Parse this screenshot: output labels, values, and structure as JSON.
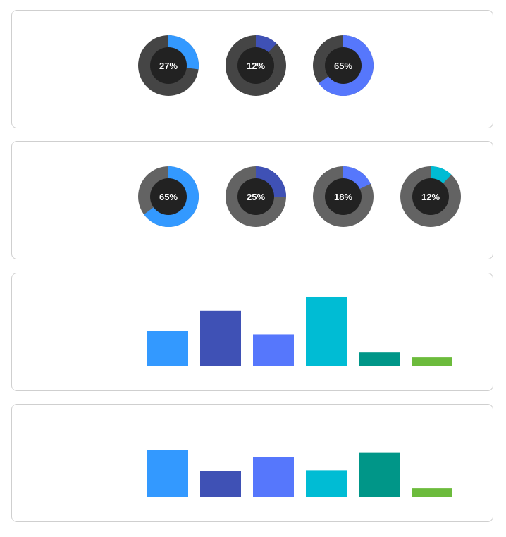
{
  "chart_data": [
    {
      "type": "pie",
      "variant": "donut-set",
      "track_color": "#454545",
      "hole_color": "#222222",
      "items": [
        {
          "value": 27,
          "label": "27%",
          "color": "#3399ff"
        },
        {
          "value": 12,
          "label": "12%",
          "color": "#3f51b5"
        },
        {
          "value": 65,
          "label": "65%",
          "color": "#5677fc"
        }
      ]
    },
    {
      "type": "pie",
      "variant": "donut-set",
      "track_color": "#636363",
      "hole_color": "#222222",
      "items": [
        {
          "value": 65,
          "label": "65%",
          "color": "#3399ff"
        },
        {
          "value": 25,
          "label": "25%",
          "color": "#3f51b5"
        },
        {
          "value": 18,
          "label": "18%",
          "color": "#5677fc"
        },
        {
          "value": 12,
          "label": "12%",
          "color": "#00bcd4"
        }
      ]
    },
    {
      "type": "bar",
      "ylim": [
        0,
        100
      ],
      "values": [
        50,
        79,
        45,
        99,
        19,
        12
      ],
      "colors": [
        "#3399ff",
        "#3f51b5",
        "#5677fc",
        "#00bcd4",
        "#009688",
        "#6cbb3c"
      ]
    },
    {
      "type": "bar",
      "ylim": [
        0,
        100
      ],
      "values": [
        67,
        37,
        57,
        38,
        63,
        12
      ],
      "colors": [
        "#3399ff",
        "#3f51b5",
        "#5677fc",
        "#00bcd4",
        "#009688",
        "#6cbb3c"
      ]
    }
  ]
}
